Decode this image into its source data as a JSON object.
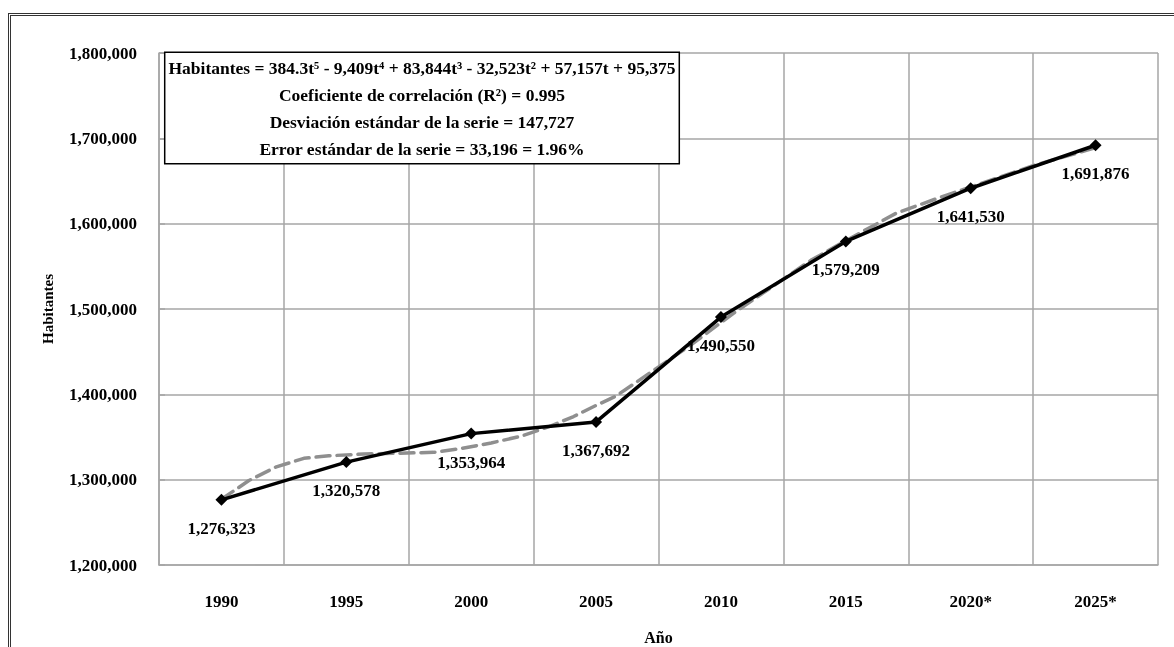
{
  "chart_data": {
    "type": "line",
    "xlabel": "Año",
    "ylabel": "Habitantes",
    "annotations": [
      "Habitantes = 384.3t⁵ - 9,409t⁴ + 83,844t³ - 32,523t² + 57,157t + 95,375",
      "Coeficiente de correlación (R²) = 0.995",
      "Desviación estándar de la serie = 147,727",
      "Error estándar de la serie = 33,196 = 1.96%"
    ],
    "x": [
      1990,
      1995,
      2000,
      2005,
      2010,
      2015,
      2020,
      2025
    ],
    "xlim": [
      1987.5,
      2027.5
    ],
    "xticks": [
      {
        "value": 1987.5,
        "label": null
      },
      1990,
      {
        "value": 1992.5,
        "label": null
      },
      1995,
      {
        "value": 1997.5,
        "label": null
      },
      2000,
      {
        "value": 2002.5,
        "label": null
      },
      2005,
      {
        "value": 2007.5,
        "label": null
      },
      2010,
      {
        "value": 2012.5,
        "label": null
      },
      2015,
      {
        "value": 2017.5,
        "label": null
      },
      {
        "value": 2020,
        "label": "2020*"
      },
      {
        "value": 2022.5,
        "label": null
      },
      {
        "value": 2025,
        "label": "2025*"
      },
      {
        "value": 2027.5,
        "label": null
      }
    ],
    "ylim": [
      1200000,
      1800000
    ],
    "yticks": [
      {
        "value": 1200000,
        "label": "1,200,000"
      },
      {
        "value": 1300000,
        "label": "1,300,000"
      },
      {
        "value": 1400000,
        "label": "1,400,000"
      },
      {
        "value": 1500000,
        "label": "1,500,000"
      },
      {
        "value": 1600000,
        "label": "1,600,000"
      },
      {
        "value": 1700000,
        "label": "1,700,000"
      },
      {
        "value": 1800000,
        "label": "1,800,000"
      }
    ],
    "grid": true,
    "marker": "diamond",
    "line_style": "solid",
    "series": [
      {
        "type": "line",
        "color": "#8f8f8f",
        "marker": "none",
        "line_style": "dashed",
        "x": [
          1990,
          1991.1,
          1992.2,
          1993.3,
          1994.3,
          1995.7,
          1997.1,
          1998.5,
          1999.5,
          2000.8,
          2002,
          2003.2,
          2004.1,
          2005,
          2005.8,
          2007.3,
          2008.8,
          2010.5,
          2012.1,
          2013.6,
          2015,
          2017,
          2018.7,
          2020,
          2022.5,
          2025
        ],
        "values": [
          1277000,
          1299000,
          1315000,
          1325000,
          1328000,
          1330000,
          1331000,
          1332000,
          1336000,
          1343000,
          1351000,
          1363000,
          1374000,
          1387000,
          1398000,
          1428000,
          1458000,
          1495000,
          1527000,
          1557000,
          1580000,
          1612000,
          1630000,
          1643000,
          1668000,
          1689000
        ]
      },
      {
        "color": "#000000",
        "values": [
          1276323,
          1320578,
          1353964,
          1367692,
          1490550,
          1579209,
          1641530,
          1691876
        ],
        "value_labels": [
          "1,276,323",
          "1,320,578",
          "1,353,964",
          "1,367,692",
          "1,490,550",
          "1,579,209",
          "1,641,530",
          "1,691,876"
        ]
      }
    ]
  }
}
